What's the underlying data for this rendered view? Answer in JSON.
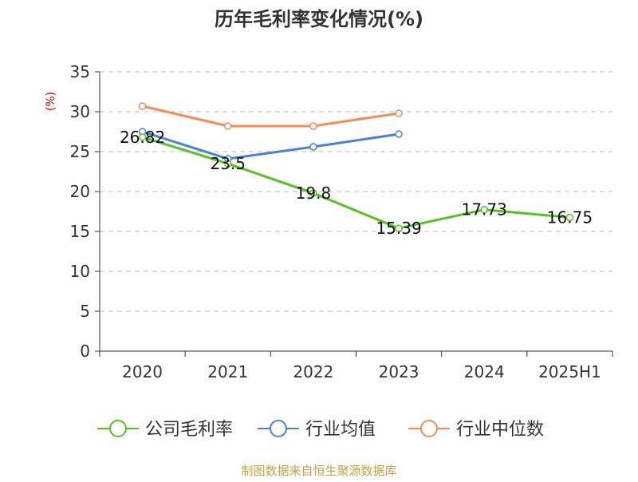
{
  "chart_data": {
    "type": "line",
    "title": "历年毛利率变化情况(%)",
    "ylabel": "(%)",
    "categories": [
      "2020",
      "2021",
      "2022",
      "2023",
      "2024",
      "2025H1"
    ],
    "ylim": [
      0,
      35
    ],
    "yticks": [
      0,
      5,
      10,
      15,
      20,
      25,
      30,
      35
    ],
    "grid": true,
    "legend_position": "bottom",
    "series": [
      {
        "name": "公司毛利率",
        "color": "#52c41a",
        "values": [
          26.82,
          23.5,
          19.8,
          15.39,
          17.73,
          16.75
        ],
        "labels": [
          "26.82",
          "23.5",
          "19.8",
          "15.39",
          "17.73",
          "16.75"
        ]
      },
      {
        "name": "行业均值",
        "color": "#4a7fdb",
        "values": [
          27.5,
          24.1,
          25.6,
          27.2,
          null,
          null
        ]
      },
      {
        "name": "行业中位数",
        "color": "#f68c55",
        "values": [
          30.7,
          28.2,
          28.2,
          29.8,
          null,
          null
        ]
      }
    ],
    "source": "制图数据来自恒生聚源数据库"
  },
  "colors": {
    "title": "#333333",
    "axis": "#333333",
    "grid": "#bbbbbb",
    "ylabel": "#cc0000",
    "source": "#c8a040"
  }
}
